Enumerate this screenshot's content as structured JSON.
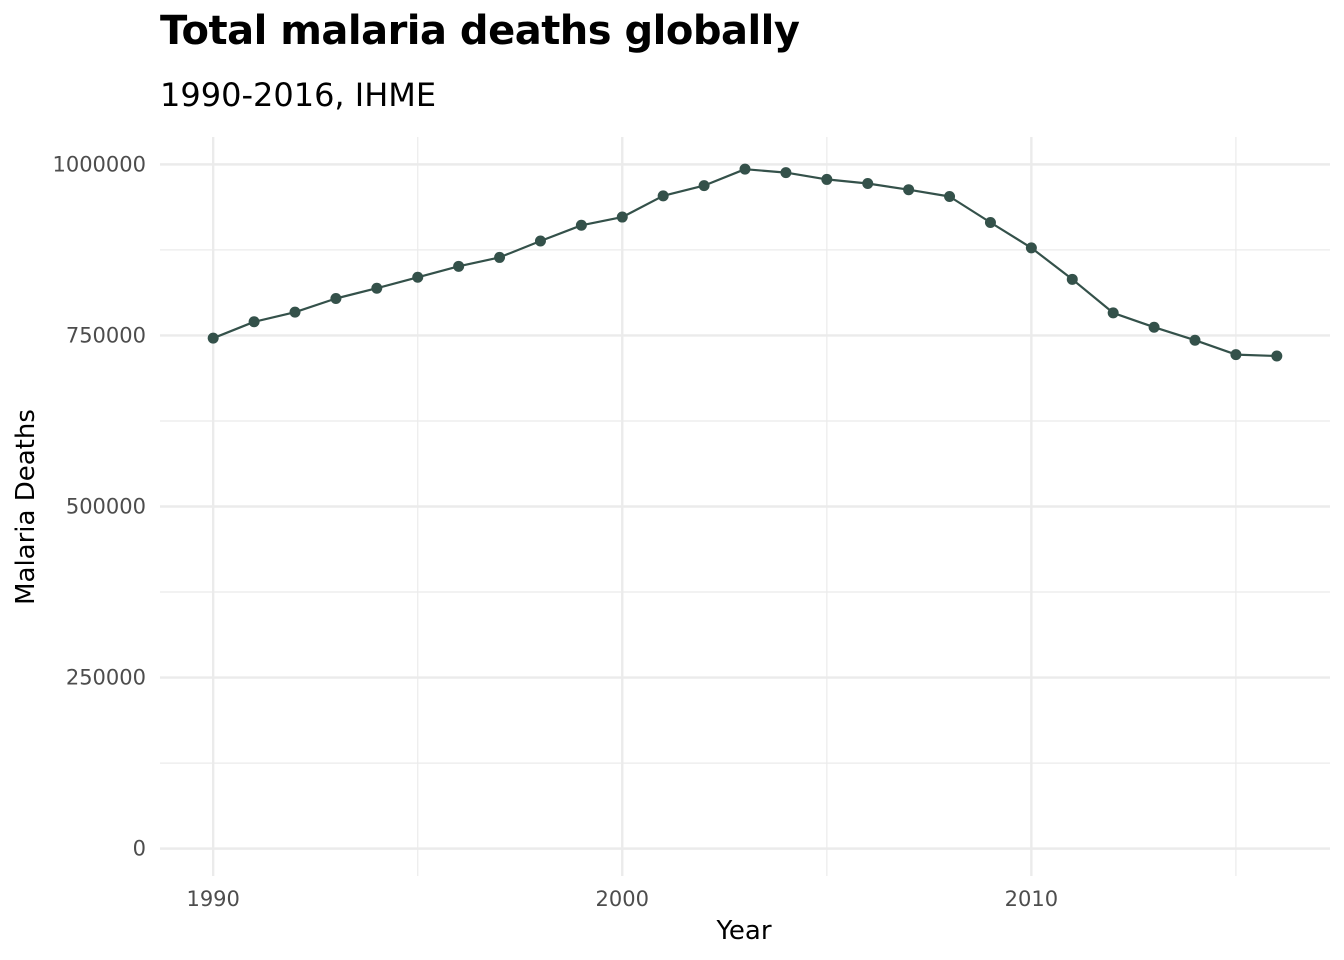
{
  "chart_data": {
    "type": "line",
    "title": "Total malaria deaths globally",
    "subtitle": "1990-2016, IHME",
    "xlabel": "Year",
    "ylabel": "Malaria Deaths",
    "x": [
      1990,
      1991,
      1992,
      1993,
      1994,
      1995,
      1996,
      1997,
      1998,
      1999,
      2000,
      2001,
      2002,
      2003,
      2004,
      2005,
      2006,
      2007,
      2008,
      2009,
      2010,
      2011,
      2012,
      2013,
      2014,
      2015,
      2016
    ],
    "series": [
      {
        "values": [
          746000,
          770000,
          784000,
          804000,
          819000,
          835000,
          851000,
          864000,
          888000,
          911000,
          923000,
          954000,
          969000,
          993000,
          988000,
          978000,
          972000,
          963000,
          953000,
          915000,
          878000,
          832000,
          783000,
          762000,
          743000,
          722000,
          720000
        ],
        "color": "#34514a"
      }
    ],
    "xlim": [
      1988.7,
      2017.3
    ],
    "ylim": [
      -40000,
      1040000
    ],
    "x_ticks": [
      1990,
      2000,
      2010
    ],
    "x_tick_labels": [
      "1990",
      "2000",
      "2010"
    ],
    "x_minor_ticks": [
      1995,
      2005,
      2015
    ],
    "y_ticks": [
      0,
      250000,
      500000,
      750000,
      1000000
    ],
    "y_tick_labels": [
      "0",
      "250000",
      "500000",
      "750000",
      "1000000"
    ],
    "y_minor_ticks": [
      125000,
      375000,
      625000,
      875000
    ],
    "grid": true,
    "legend": "none",
    "colors": {
      "grid": "#ebebeb",
      "tick_text": "#4d4d4d",
      "line": "#34514a"
    }
  }
}
